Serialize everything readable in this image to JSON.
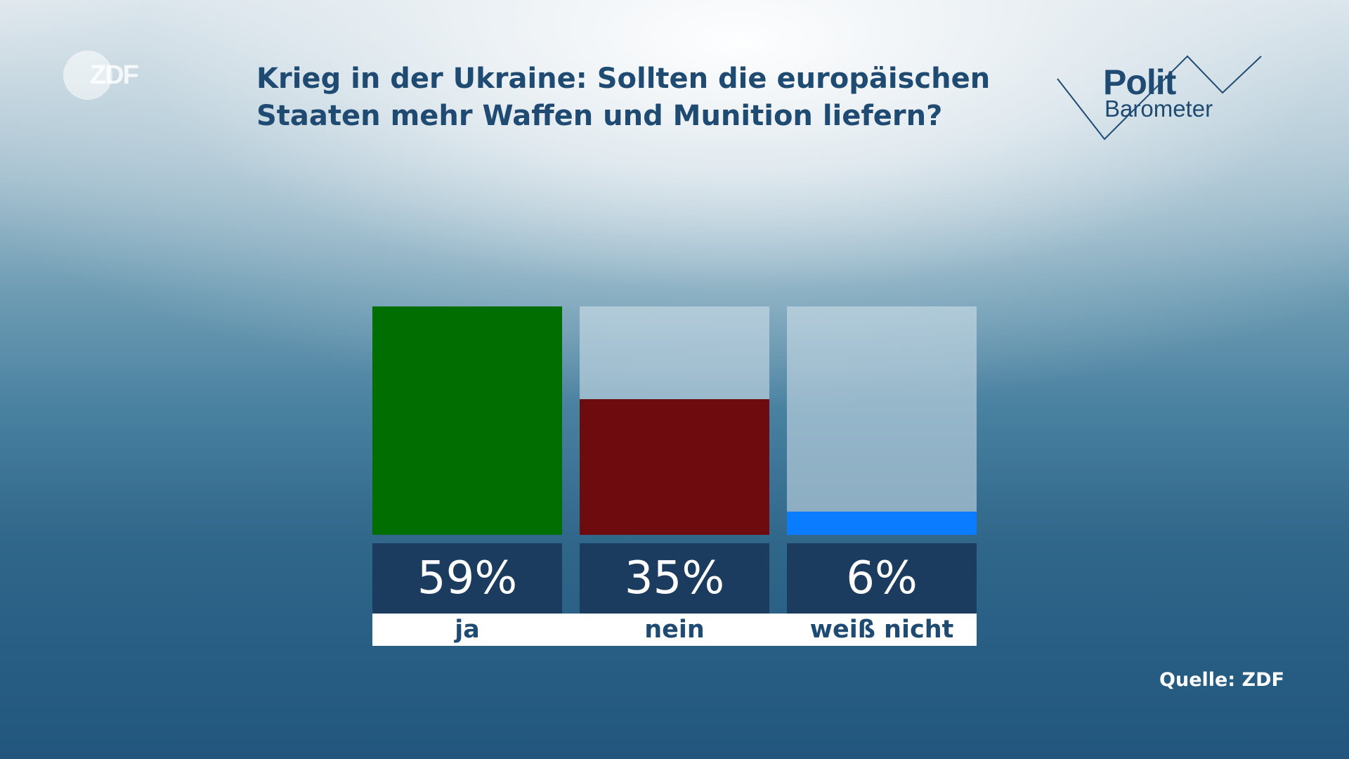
{
  "brand": {
    "logo_text": "ZDF",
    "product_line1": "Polit",
    "product_line2": "Barometer"
  },
  "title_lines": [
    "Krieg in der Ukraine: Sollten die europäischen",
    "Staaten mehr Waffen und Munition liefern?"
  ],
  "source": "Quelle: ZDF",
  "colors": {
    "title": "#1f4a72",
    "ja": "#006e00",
    "nein": "#6e0b0e",
    "weiss_nicht": "#0a7cff",
    "value_box": "#1c3c5f"
  },
  "chart_data": {
    "type": "bar",
    "categories": [
      "ja",
      "nein",
      "weiß nicht"
    ],
    "values": [
      59,
      35,
      6
    ],
    "value_labels": [
      "59%",
      "35%",
      "6%"
    ],
    "ylim": [
      0,
      59
    ],
    "unit": "%"
  }
}
